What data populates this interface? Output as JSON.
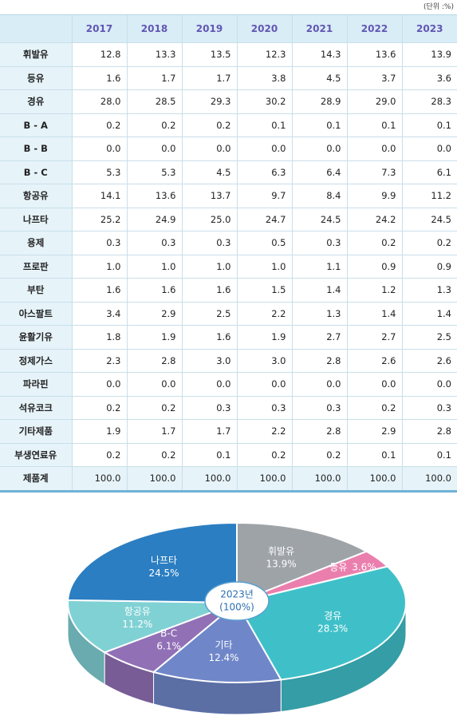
{
  "unit": "(단위 :%)",
  "table": {
    "header": [
      "",
      "2017",
      "2018",
      "2019",
      "2020",
      "2021",
      "2022",
      "2023"
    ],
    "rows": [
      [
        "휘발유",
        "12.8",
        "13.3",
        "13.5",
        "12.3",
        "14.3",
        "13.6",
        "13.9"
      ],
      [
        "등유",
        "1.6",
        "1.7",
        "1.7",
        "3.8",
        "4.5",
        "3.7",
        "3.6"
      ],
      [
        "경유",
        "28.0",
        "28.5",
        "29.3",
        "30.2",
        "28.9",
        "29.0",
        "28.3"
      ],
      [
        "B - A",
        "0.2",
        "0.2",
        "0.2",
        "0.1",
        "0.1",
        "0.1",
        "0.1"
      ],
      [
        "B - B",
        "0.0",
        "0.0",
        "0.0",
        "0.0",
        "0.0",
        "0.0",
        "0.0"
      ],
      [
        "B - C",
        "5.3",
        "5.3",
        "4.5",
        "6.3",
        "6.4",
        "7.3",
        "6.1"
      ],
      [
        "항공유",
        "14.1",
        "13.6",
        "13.7",
        "9.7",
        "8.4",
        "9.9",
        "11.2"
      ],
      [
        "나프타",
        "25.2",
        "24.9",
        "25.0",
        "24.7",
        "24.5",
        "24.2",
        "24.5"
      ],
      [
        "용제",
        "0.3",
        "0.3",
        "0.3",
        "0.5",
        "0.3",
        "0.2",
        "0.2"
      ],
      [
        "프로판",
        "1.0",
        "1.0",
        "1.0",
        "1.0",
        "1.1",
        "0.9",
        "0.9"
      ],
      [
        "부탄",
        "1.6",
        "1.6",
        "1.6",
        "1.5",
        "1.4",
        "1.2",
        "1.3"
      ],
      [
        "아스팔트",
        "3.4",
        "2.9",
        "2.5",
        "2.2",
        "1.3",
        "1.4",
        "1.4"
      ],
      [
        "윤활기유",
        "1.8",
        "1.9",
        "1.6",
        "1.9",
        "2.7",
        "2.7",
        "2.5"
      ],
      [
        "정제가스",
        "2.3",
        "2.8",
        "3.0",
        "3.0",
        "2.8",
        "2.6",
        "2.6"
      ],
      [
        "파라핀",
        "0.0",
        "0.0",
        "0.0",
        "0.0",
        "0.0",
        "0.0",
        "0.0"
      ],
      [
        "석유코크",
        "0.2",
        "0.2",
        "0.3",
        "0.3",
        "0.3",
        "0.2",
        "0.3"
      ],
      [
        "기타제품",
        "1.9",
        "1.7",
        "1.7",
        "2.2",
        "2.8",
        "2.9",
        "2.8"
      ],
      [
        "부생연료유",
        "0.2",
        "0.2",
        "0.1",
        "0.2",
        "0.2",
        "0.1",
        "0.1"
      ],
      [
        "제품계",
        "100.0",
        "100.0",
        "100.0",
        "100.0",
        "100.0",
        "100.0",
        "100.0"
      ]
    ]
  },
  "chart_data": {
    "type": "pie",
    "center_label": [
      "2023년",
      "(100%)"
    ],
    "categories": [
      "휘발유",
      "등유",
      "경유",
      "기타",
      "B-C",
      "항공유",
      "나프타"
    ],
    "values": [
      13.9,
      3.6,
      28.3,
      12.4,
      6.1,
      11.2,
      24.5
    ],
    "value_labels": [
      "13.9%",
      "3.6%",
      "28.3%",
      "12.4%",
      "6.1%",
      "11.2%",
      "24.5%"
    ],
    "colors": [
      "#9ea3a8",
      "#ea7fae",
      "#3fc0c9",
      "#6f87c9",
      "#9170b6",
      "#80d1d4",
      "#2b7ec2"
    ]
  }
}
